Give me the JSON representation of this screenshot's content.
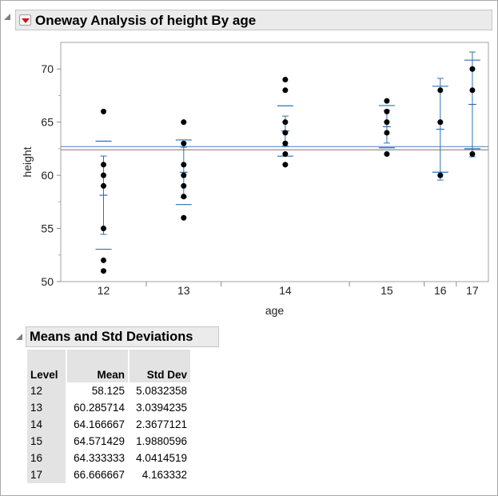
{
  "report": {
    "title": "Oneway Analysis of height By age"
  },
  "chart_data": {
    "type": "scatter",
    "xlabel": "age",
    "ylabel": "height",
    "ylim": [
      50,
      72.5
    ],
    "yticks": [
      50,
      55,
      60,
      65,
      70
    ],
    "categories": [
      "12",
      "13",
      "14",
      "15",
      "16",
      "17"
    ],
    "group_sizes": [
      8,
      7,
      12,
      7,
      3,
      3
    ],
    "points": {
      "12": [
        66,
        61,
        60,
        59,
        55,
        52,
        51
      ],
      "13": [
        65,
        63,
        61,
        60,
        59,
        58,
        56
      ],
      "14": [
        69,
        68,
        65,
        64,
        63,
        62,
        61
      ],
      "15": [
        67,
        66,
        65,
        64,
        62
      ],
      "16": [
        68,
        65,
        60
      ],
      "17": [
        70,
        68,
        62
      ]
    },
    "grand_mean": 62.55,
    "means": [
      58.125,
      60.285714,
      64.166667,
      64.571429,
      64.333333,
      66.666667
    ],
    "std_devs": [
      5.0832358,
      3.0394235,
      2.3677121,
      1.9880596,
      4.0414519,
      4.163332
    ],
    "std_errors": [
      1.797,
      1.149,
      0.684,
      0.751,
      2.333,
      2.404
    ],
    "colors": {
      "points": "#000000",
      "means": "#2f6fb5",
      "grand_mean": "#4f7fbf",
      "frame": "#a0a0a0"
    }
  },
  "table": {
    "title": "Means and Std Deviations",
    "columns": [
      "Level",
      "Mean",
      "Std Dev"
    ],
    "rows": [
      [
        "12",
        "58.125",
        "5.0832358"
      ],
      [
        "13",
        "60.285714",
        "3.0394235"
      ],
      [
        "14",
        "64.166667",
        "2.3677121"
      ],
      [
        "15",
        "64.571429",
        "1.9880596"
      ],
      [
        "16",
        "64.333333",
        "4.0414519"
      ],
      [
        "17",
        "66.666667",
        "4.163332"
      ]
    ]
  }
}
